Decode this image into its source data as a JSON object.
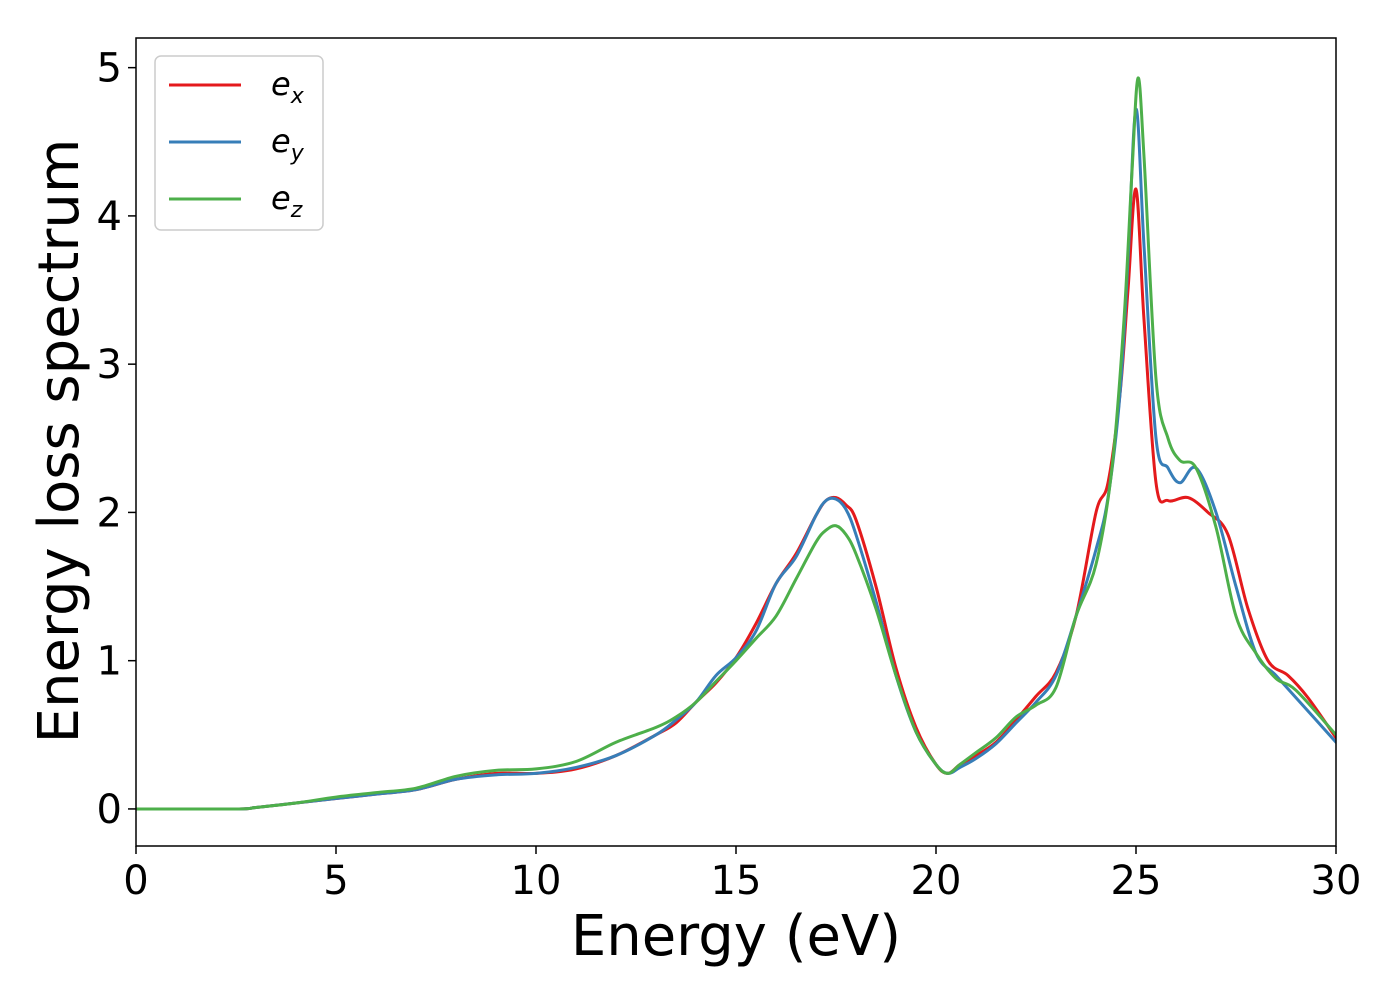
{
  "chart_data": {
    "type": "line",
    "title": "",
    "xlabel": "Energy (eV)",
    "ylabel": "Energy loss spectrum",
    "xlim": [
      0,
      30
    ],
    "ylim": [
      -0.25,
      5.2
    ],
    "xticks": [
      0,
      5,
      10,
      15,
      20,
      25,
      30
    ],
    "yticks": [
      0,
      1,
      2,
      3,
      4,
      5
    ],
    "grid": false,
    "legend_position": "top-left",
    "series": [
      {
        "name": "e_x",
        "label_base": "e",
        "label_sub": "x",
        "color": "#e41a1c",
        "x": [
          0,
          2.5,
          3,
          4,
          5,
          6,
          7,
          8,
          9,
          10,
          11,
          12,
          13,
          13.5,
          14,
          14.5,
          15,
          15.5,
          16,
          16.5,
          17,
          17.25,
          17.5,
          17.75,
          18,
          18.5,
          19,
          19.5,
          20,
          20.3,
          20.6,
          21,
          21.5,
          22,
          22.5,
          23,
          23.5,
          24,
          24.3,
          24.6,
          24.8,
          25,
          25.2,
          25.5,
          25.8,
          26.3,
          26.8,
          27.3,
          27.8,
          28.3,
          28.8,
          29.3,
          30
        ],
        "y": [
          0,
          0,
          0.01,
          0.04,
          0.07,
          0.1,
          0.13,
          0.2,
          0.24,
          0.24,
          0.27,
          0.36,
          0.5,
          0.58,
          0.72,
          0.85,
          1.02,
          1.25,
          1.52,
          1.72,
          1.98,
          2.08,
          2.1,
          2.05,
          1.95,
          1.5,
          0.95,
          0.55,
          0.3,
          0.24,
          0.3,
          0.36,
          0.45,
          0.6,
          0.76,
          0.92,
          1.3,
          2.0,
          2.2,
          2.8,
          3.5,
          4.18,
          3.3,
          2.2,
          2.08,
          2.1,
          2.0,
          1.85,
          1.35,
          1.0,
          0.9,
          0.75,
          0.48
        ]
      },
      {
        "name": "e_y",
        "label_base": "e",
        "label_sub": "y",
        "color": "#377eb8",
        "x": [
          0,
          2.5,
          3,
          4,
          5,
          6,
          7,
          8,
          9,
          10,
          11,
          12,
          13,
          13.5,
          14,
          14.5,
          15,
          15.5,
          16,
          16.5,
          17,
          17.25,
          17.5,
          17.75,
          18,
          18.5,
          19,
          19.5,
          20,
          20.3,
          20.6,
          21,
          21.5,
          22,
          22.5,
          23,
          23.5,
          24,
          24.3,
          24.6,
          24.8,
          25,
          25.2,
          25.5,
          25.8,
          26.1,
          26.5,
          27,
          27.5,
          28,
          28.5,
          29,
          30
        ],
        "y": [
          0,
          0,
          0.01,
          0.04,
          0.07,
          0.1,
          0.13,
          0.2,
          0.23,
          0.24,
          0.28,
          0.36,
          0.5,
          0.6,
          0.72,
          0.9,
          1.02,
          1.2,
          1.52,
          1.7,
          1.98,
          2.08,
          2.09,
          2.02,
          1.85,
          1.4,
          0.9,
          0.52,
          0.3,
          0.24,
          0.28,
          0.34,
          0.44,
          0.58,
          0.72,
          0.9,
          1.3,
          1.75,
          2.1,
          2.8,
          3.7,
          4.72,
          3.8,
          2.5,
          2.3,
          2.2,
          2.3,
          2.0,
          1.5,
          1.05,
          0.9,
          0.75,
          0.45
        ]
      },
      {
        "name": "e_z",
        "label_base": "e",
        "label_sub": "z",
        "color": "#4daf4a",
        "x": [
          0,
          2.5,
          3,
          4,
          5,
          6,
          7,
          8,
          9,
          10,
          11,
          12,
          13,
          13.5,
          14,
          14.5,
          15,
          15.5,
          16,
          16.5,
          17,
          17.25,
          17.5,
          17.75,
          18,
          18.5,
          19,
          19.5,
          20,
          20.3,
          20.6,
          21,
          21.5,
          22,
          22.5,
          23,
          23.5,
          24,
          24.4,
          24.7,
          24.9,
          25.05,
          25.2,
          25.5,
          25.8,
          26.1,
          26.5,
          27,
          27.5,
          28,
          28.5,
          29,
          30
        ],
        "y": [
          0,
          0,
          0.01,
          0.04,
          0.08,
          0.11,
          0.14,
          0.22,
          0.26,
          0.27,
          0.32,
          0.45,
          0.55,
          0.62,
          0.72,
          0.86,
          1.0,
          1.15,
          1.3,
          1.55,
          1.8,
          1.88,
          1.91,
          1.85,
          1.72,
          1.35,
          0.9,
          0.52,
          0.3,
          0.24,
          0.3,
          0.38,
          0.48,
          0.62,
          0.7,
          0.82,
          1.3,
          1.65,
          2.3,
          3.3,
          4.3,
          4.93,
          4.4,
          2.9,
          2.5,
          2.35,
          2.3,
          1.9,
          1.3,
          1.05,
          0.88,
          0.8,
          0.5
        ]
      }
    ]
  }
}
